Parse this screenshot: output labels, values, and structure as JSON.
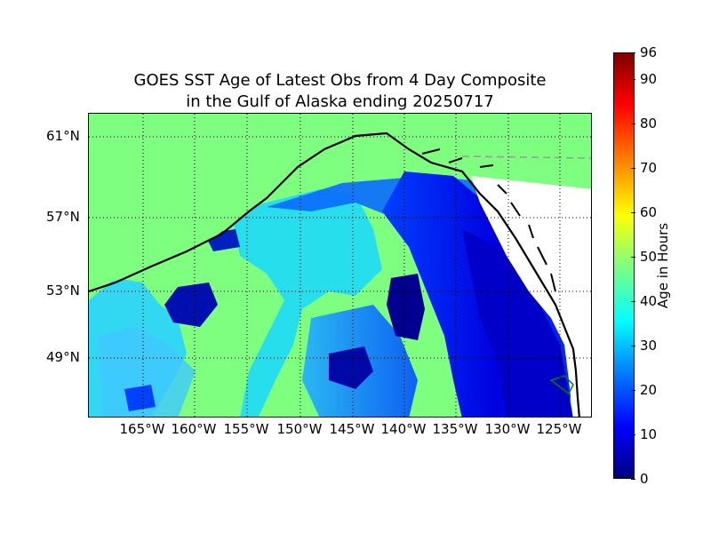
{
  "title": {
    "line1": "GOES SST Age of Latest Obs from 4 Day Composite",
    "line2": "in the Gulf of Alaska ending 20250717"
  },
  "map": {
    "lat_ticks": [
      "61°N",
      "57°N",
      "53°N",
      "49°N"
    ],
    "lon_ticks": [
      "165°W",
      "160°W",
      "155°W",
      "150°W",
      "145°W",
      "140°W",
      "135°W",
      "130°W",
      "125°W"
    ],
    "colors": {
      "land": "#ffffff",
      "no_data": "#7fff7f",
      "coast": "#000000",
      "grid": "#000000",
      "border": "#999999"
    }
  },
  "colorbar": {
    "label": "Age in Hours",
    "ticks": [
      "96",
      "90",
      "80",
      "70",
      "60",
      "50",
      "40",
      "30",
      "20",
      "10",
      "0"
    ],
    "range": [
      0,
      96
    ],
    "colormap": "jet"
  }
}
